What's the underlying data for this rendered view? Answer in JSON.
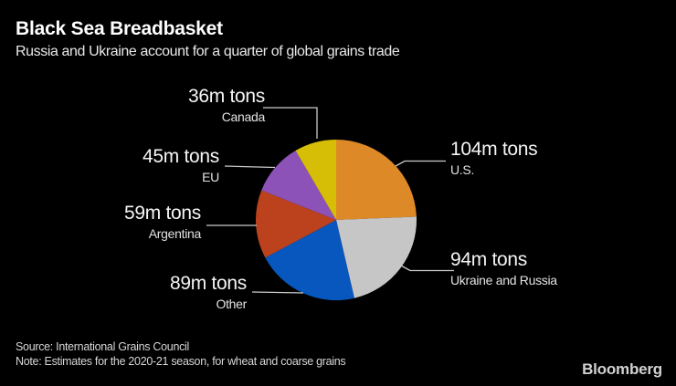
{
  "header": {
    "title": "Black Sea Breadbasket",
    "subtitle": "Russia and Ukraine account for a quarter of global grains trade"
  },
  "chart_data": {
    "type": "pie",
    "title": "Black Sea Breadbasket",
    "subtitle": "Russia and Ukraine account for a quarter of global grains trade",
    "unit": "m tons",
    "total": 427,
    "start_angle_deg": 0,
    "direction": "clockwise",
    "slices": [
      {
        "name": "U.S.",
        "value": 104,
        "value_label": "104m tons",
        "color": "#DD8927"
      },
      {
        "name": "Ukraine and Russia",
        "value": 94,
        "value_label": "94m tons",
        "color": "#C6C6C6"
      },
      {
        "name": "Other",
        "value": 89,
        "value_label": "89m tons",
        "color": "#0857BE"
      },
      {
        "name": "Argentina",
        "value": 59,
        "value_label": "59m tons",
        "color": "#BC421D"
      },
      {
        "name": "EU",
        "value": 45,
        "value_label": "45m tons",
        "color": "#8C52B8"
      },
      {
        "name": "Canada",
        "value": 36,
        "value_label": "36m tons",
        "color": "#D6BE06"
      }
    ],
    "legend_position": "callout-labels",
    "background_color": "#000000"
  },
  "footer": {
    "source": "Source: International Grains Council",
    "note": "Note: Estimates for the 2020-21 season, for wheat and coarse grains",
    "brand": "Bloomberg"
  }
}
